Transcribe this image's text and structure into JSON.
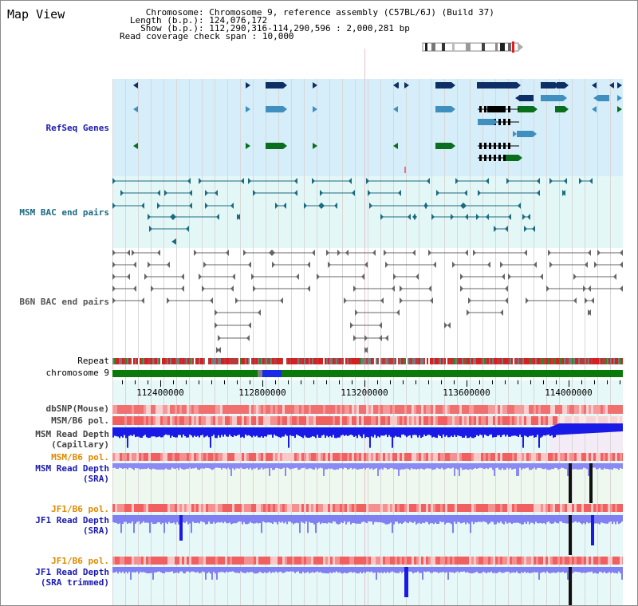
{
  "view_title": "Map View",
  "header": {
    "chromosome_label": "Chromosome",
    "chromosome_value": ": Chromosome 9, reference assembly (C57BL/6J) (Build 37)",
    "length_label": "Length (b.p.)",
    "length_value": ": 124,076,172",
    "show_label": "Show (b.p.)",
    "show_value": ": 112,290,316-114,290,596 : 2,000,281 bp",
    "coverage_label": "Read coverage check span",
    "coverage_value": ": 10,000"
  },
  "tracks": {
    "refseq": "RefSeq Genes",
    "msm_bac": "MSM BAC end pairs",
    "b6n_bac": "B6N BAC end pairs",
    "repeat": "Repeat",
    "chromosome": "chromosome 9",
    "dbsnp": "dbSNP(Mouse)",
    "msm_b6_pol_1": "MSM/B6 pol.",
    "msm_depth_cap": "MSM Read Depth\n(Capillary)",
    "msm_b6_pol_2": "MSM/B6 pol.",
    "msm_depth_sra": "MSM Read Depth\n(SRA)",
    "jf1_b6_pol_1": "JF1/B6 pol.",
    "jf1_depth_sra": "JF1 Read Depth\n(SRA)",
    "jf1_b6_pol_2": "JF1/B6 pol.",
    "jf1_depth_trim": "JF1 Read Depth\n(SRA trimmed)"
  },
  "axis": {
    "ticks": [
      "112400000",
      "112800000",
      "113200000",
      "113600000",
      "114000000"
    ]
  },
  "colors": {
    "refseq_bg": "#d6eef9",
    "bac_bg": "#e4f7f7",
    "gene_dark": "#0d2f66",
    "gene_mid": "#3f8fbf",
    "gene_green": "#0a6e1f",
    "chrom_green": "#0a7a0a",
    "depth_blue": "#1a1ae6",
    "depth_light": "#8080f0",
    "label_blue": "#1a1ab0",
    "label_teal": "#1a6a80",
    "label_orange": "#e08a00"
  }
}
